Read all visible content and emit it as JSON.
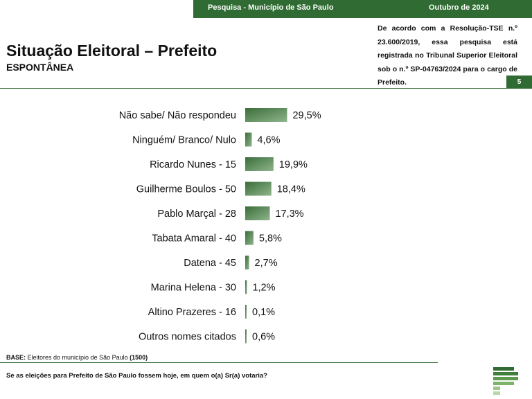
{
  "header": {
    "survey_label": "Pesquisa - Município de São Paulo",
    "date_label": "Outubro de 2024"
  },
  "title": "Situação Eleitoral – Prefeito",
  "subtitle": "ESPONTÂNEA",
  "registration_notice": "De acordo com a Resolução-TSE n.º 23.600/2019, essa pesquisa está registrada no Tribunal Superior Eleitoral sob o n.º SP-04763/2024 para o cargo de Prefeito.",
  "page_number": "5",
  "base": {
    "label": "BASE:",
    "text": " Eleitores do município de São Paulo ",
    "count": "(1500)"
  },
  "question": "Se as eleições para Prefeito de São Paulo fossem hoje, em quem o(a) Sr(a) votaria?",
  "colors": {
    "brand_green": "#2f6b32",
    "bar_dark": "#3a6e3a",
    "bar_light": "#8fb48c"
  },
  "chart_data": {
    "type": "bar",
    "orientation": "horizontal",
    "categories": [
      "Não sabe/ Não respondeu",
      "Ninguém/ Branco/ Nulo",
      "Ricardo Nunes - 15",
      "Guilherme Boulos - 50",
      "Pablo Marçal - 28",
      "Tabata Amaral - 40",
      "Datena - 45",
      "Marina Helena - 30",
      "Altino Prazeres - 16",
      "Outros nomes citados"
    ],
    "values": [
      29.5,
      4.6,
      19.9,
      18.4,
      17.3,
      5.8,
      2.7,
      1.2,
      0.1,
      0.6
    ],
    "value_labels": [
      "29,5%",
      "4,6%",
      "19,9%",
      "18,4%",
      "17,3%",
      "5,8%",
      "2,7%",
      "1,2%",
      "0,1%",
      "0,6%"
    ],
    "unit": "%"
  }
}
